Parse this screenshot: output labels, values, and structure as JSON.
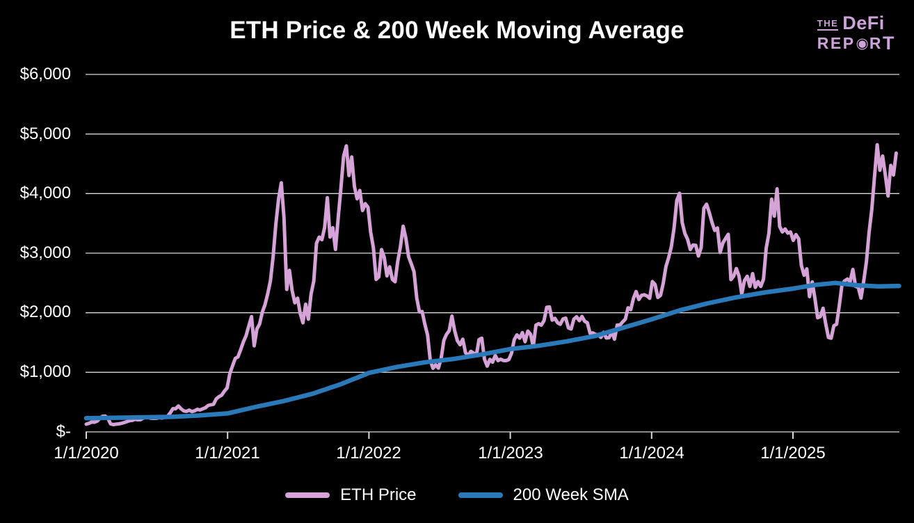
{
  "header": {
    "title": "ETH Price & 200 Week Moving Average"
  },
  "logo": {
    "the": "THE",
    "defi": "DeFi",
    "rep": "REP",
    "bullseye": "◉",
    "r": "R",
    "t": "T",
    "color": "#cda3da"
  },
  "chart_data": {
    "type": "line",
    "title": "ETH Price & 200 Week Moving Average",
    "xlabel": "",
    "ylabel": "",
    "ylim": [
      0,
      6000
    ],
    "y_tick_step": 1000,
    "y_tick_labels": [
      "$6,000",
      "$5,000",
      "$4,000",
      "$3,000",
      "$2,000",
      "$1,000",
      "$-"
    ],
    "x_tick_labels": [
      "1/1/2020",
      "1/1/2021",
      "1/1/2022",
      "1/1/2023",
      "1/1/2024",
      "1/1/2025"
    ],
    "grid": "horizontal",
    "grid_color": "#d9d9d9",
    "background": "#000000",
    "legend": {
      "position": "bottom",
      "entries": [
        {
          "label": "ETH Price",
          "color": "#d6a3d8"
        },
        {
          "label": "200 Week SMA",
          "color": "#2a79b8"
        }
      ]
    },
    "series": [
      {
        "name": "ETH Price",
        "color": "#d6a3d8",
        "unit": "USD",
        "cadence": "weekly",
        "start": "1/1/2020",
        "values": [
          130,
          144,
          166,
          162,
          180,
          224,
          262,
          265,
          228,
          134,
          122,
          129,
          134,
          143,
          157,
          172,
          188,
          194,
          211,
          203,
          205,
          231,
          244,
          240,
          229,
          226,
          230,
          239,
          234,
          247,
          262,
          318,
          390,
          387,
          434,
          388,
          352,
          344,
          365,
          341,
          354,
          379,
          368,
          388,
          406,
          443,
          455,
          463,
          555,
          592,
          616,
          684,
          737,
          978,
          1107,
          1233,
          1260,
          1380,
          1512,
          1616,
          1780,
          1935,
          1445,
          1726,
          1810,
          2010,
          2136,
          2320,
          2536,
          2946,
          3490,
          3910,
          4180,
          3590,
          2392,
          2712,
          2370,
          2166,
          2244,
          1986,
          1832,
          2142,
          1892,
          2312,
          2532,
          3166,
          3270,
          3226,
          3432,
          3930,
          3270,
          3426,
          3062,
          3592,
          4092,
          4628,
          4800,
          4304,
          4614,
          4122,
          3912,
          4052,
          3715,
          3830,
          3770,
          3350,
          3091,
          2560,
          2603,
          3060,
          2930,
          2620,
          2770,
          2560,
          2520,
          2862,
          3110,
          3452,
          3250,
          2940,
          2820,
          2690,
          2250,
          2014,
          2020,
          1806,
          1626,
          1200,
          1068,
          1125,
          1072,
          1233,
          1536,
          1636,
          1698,
          1942,
          1700,
          1532,
          1462,
          1556,
          1330,
          1280,
          1352,
          1322,
          1282,
          1550,
          1572,
          1220,
          1104,
          1216,
          1170,
          1282,
          1196,
          1220,
          1198,
          1196,
          1214,
          1320,
          1550,
          1628,
          1572,
          1666,
          1514,
          1692,
          1640,
          1432,
          1792,
          1816,
          1792,
          1866,
          2092,
          2096,
          1876,
          1906,
          1832,
          1806,
          1896,
          1910,
          1746,
          1726,
          1892,
          1932,
          1866,
          1936,
          1856,
          1832,
          1656,
          1662,
          1636,
          1632,
          1586,
          1672,
          1576,
          1582,
          1682,
          1556,
          1792,
          1792,
          1846,
          1892,
          2082,
          2052,
          2242,
          2356,
          2222,
          2292,
          2302,
          2282,
          2242,
          2522,
          2472,
          2256,
          2292,
          2496,
          2776,
          2926,
          3112,
          3426,
          3886,
          4005,
          3512,
          3332,
          3232,
          3062,
          3136,
          3132,
          2952,
          3092,
          3752,
          3822,
          3682,
          3516,
          3382,
          3422,
          3012,
          3172,
          3246,
          3316,
          2556,
          2612,
          2742,
          2612,
          2312,
          2542,
          2612,
          2442,
          2656,
          2426,
          2522,
          2442,
          2562,
          3082,
          3332,
          3906,
          3622,
          4080,
          3446,
          3356,
          3406,
          3336,
          3355,
          3215,
          3312,
          3242,
          2792,
          2630,
          2736,
          2270,
          2516,
          2236,
          1916,
          1936,
          2076,
          1812,
          1586,
          1572,
          1782,
          1806,
          2120,
          2472,
          2536,
          2566,
          2522,
          2726,
          2442,
          2426,
          2246,
          2532,
          2856,
          3356,
          3742,
          4282,
          4820,
          4392,
          4630,
          4310,
          3960,
          4472,
          4312,
          4680
        ]
      },
      {
        "name": "200 Week SMA",
        "color": "#2a79b8",
        "unit": "USD",
        "points_years_from_2020": [
          [
            0,
            230
          ],
          [
            0.3,
            240
          ],
          [
            0.6,
            252
          ],
          [
            0.8,
            275
          ],
          [
            1.0,
            310
          ],
          [
            1.2,
            420
          ],
          [
            1.4,
            520
          ],
          [
            1.6,
            640
          ],
          [
            1.8,
            800
          ],
          [
            2.0,
            990
          ],
          [
            2.2,
            1090
          ],
          [
            2.4,
            1170
          ],
          [
            2.6,
            1225
          ],
          [
            2.8,
            1300
          ],
          [
            3.0,
            1390
          ],
          [
            3.2,
            1445
          ],
          [
            3.4,
            1520
          ],
          [
            3.6,
            1610
          ],
          [
            3.8,
            1750
          ],
          [
            4.0,
            1890
          ],
          [
            4.2,
            2040
          ],
          [
            4.4,
            2160
          ],
          [
            4.6,
            2260
          ],
          [
            4.8,
            2340
          ],
          [
            5.0,
            2405
          ],
          [
            5.15,
            2465
          ],
          [
            5.3,
            2500
          ],
          [
            5.45,
            2462
          ],
          [
            5.6,
            2442
          ],
          [
            5.75,
            2450
          ]
        ]
      }
    ]
  }
}
